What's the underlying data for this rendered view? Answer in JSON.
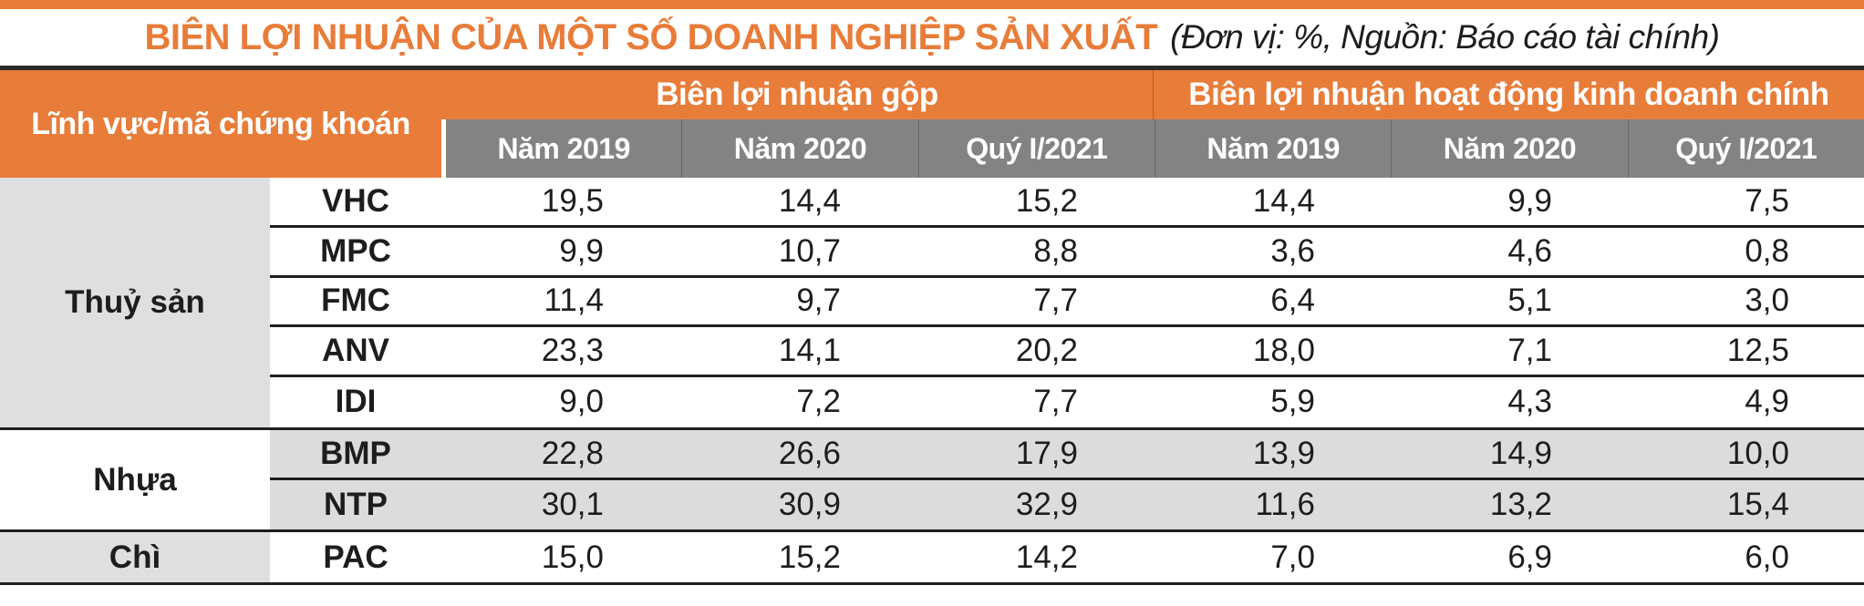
{
  "title": {
    "main": "BIÊN LỢI NHUẬN CỦA MỘT SỐ DOANH NGHIỆP SẢN XUẤT",
    "note": "(Đơn vị: %, Nguồn: Báo cáo tài chính)"
  },
  "table": {
    "corner_header": "Lĩnh vực/mã chứng khoán",
    "groups": [
      {
        "label": "Biên lợi nhuận gộp",
        "columns": [
          "Năm 2019",
          "Năm 2020",
          "Quý I/2021"
        ]
      },
      {
        "label": "Biên lợi nhuận hoạt động kinh doanh chính",
        "columns": [
          "Năm 2019",
          "Năm 2020",
          "Quý I/2021"
        ]
      }
    ],
    "sectors": [
      {
        "name": "Thuỷ sản",
        "shaded_sector": true,
        "shaded_rows": false,
        "rows": [
          {
            "ticker": "VHC",
            "values": [
              "19,5",
              "14,4",
              "15,2",
              "14,4",
              "9,9",
              "7,5"
            ]
          },
          {
            "ticker": "MPC",
            "values": [
              "9,9",
              "10,7",
              "8,8",
              "3,6",
              "4,6",
              "0,8"
            ]
          },
          {
            "ticker": "FMC",
            "values": [
              "11,4",
              "9,7",
              "7,7",
              "6,4",
              "5,1",
              "3,0"
            ]
          },
          {
            "ticker": "ANV",
            "values": [
              "23,3",
              "14,1",
              "20,2",
              "18,0",
              "7,1",
              "12,5"
            ]
          },
          {
            "ticker": "IDI",
            "values": [
              "9,0",
              "7,2",
              "7,7",
              "5,9",
              "4,3",
              "4,9"
            ]
          }
        ]
      },
      {
        "name": "Nhựa",
        "shaded_sector": false,
        "shaded_rows": true,
        "rows": [
          {
            "ticker": "BMP",
            "values": [
              "22,8",
              "26,6",
              "17,9",
              "13,9",
              "14,9",
              "10,0"
            ]
          },
          {
            "ticker": "NTP",
            "values": [
              "30,1",
              "30,9",
              "32,9",
              "11,6",
              "13,2",
              "15,4"
            ]
          }
        ]
      },
      {
        "name": "Chì",
        "shaded_sector": true,
        "shaded_rows": false,
        "rows": [
          {
            "ticker": "PAC",
            "values": [
              "15,0",
              "15,2",
              "14,2",
              "7,0",
              "6,9",
              "6,0"
            ]
          }
        ]
      }
    ]
  },
  "colors": {
    "accent_orange": "#E87C39",
    "header_gray": "#838383",
    "shade_gray": "#DEDEDE",
    "line_dark": "#1e1e1e",
    "text_black": "#1d1d1d",
    "text_white": "#ffffff"
  },
  "chart_data": {
    "type": "table",
    "title": "BIÊN LỢI NHUẬN CỦA MỘT SỐ DOANH NGHIỆP SẢN XUẤT",
    "subtitle": "(Đơn vị: %, Nguồn: Báo cáo tài chính)",
    "unit": "%",
    "column_groups": [
      {
        "label": "Biên lợi nhuận gộp",
        "columns": [
          "Năm 2019",
          "Năm 2020",
          "Quý I/2021"
        ]
      },
      {
        "label": "Biên lợi nhuận hoạt động kinh doanh chính",
        "columns": [
          "Năm 2019",
          "Năm 2020",
          "Quý I/2021"
        ]
      }
    ],
    "row_header": "Lĩnh vực/mã chứng khoán",
    "rows": [
      {
        "sector": "Thuỷ sản",
        "ticker": "VHC",
        "gross_margin": [
          19.5,
          14.4,
          15.2
        ],
        "operating_margin": [
          14.4,
          9.9,
          7.5
        ]
      },
      {
        "sector": "Thuỷ sản",
        "ticker": "MPC",
        "gross_margin": [
          9.9,
          10.7,
          8.8
        ],
        "operating_margin": [
          3.6,
          4.6,
          0.8
        ]
      },
      {
        "sector": "Thuỷ sản",
        "ticker": "FMC",
        "gross_margin": [
          11.4,
          9.7,
          7.7
        ],
        "operating_margin": [
          6.4,
          5.1,
          3.0
        ]
      },
      {
        "sector": "Thuỷ sản",
        "ticker": "ANV",
        "gross_margin": [
          23.3,
          14.1,
          20.2
        ],
        "operating_margin": [
          18.0,
          7.1,
          12.5
        ]
      },
      {
        "sector": "Thuỷ sản",
        "ticker": "IDI",
        "gross_margin": [
          9.0,
          7.2,
          7.7
        ],
        "operating_margin": [
          5.9,
          4.3,
          4.9
        ]
      },
      {
        "sector": "Nhựa",
        "ticker": "BMP",
        "gross_margin": [
          22.8,
          26.6,
          17.9
        ],
        "operating_margin": [
          13.9,
          14.9,
          10.0
        ]
      },
      {
        "sector": "Nhựa",
        "ticker": "NTP",
        "gross_margin": [
          30.1,
          30.9,
          32.9
        ],
        "operating_margin": [
          11.6,
          13.2,
          15.4
        ]
      },
      {
        "sector": "Chì",
        "ticker": "PAC",
        "gross_margin": [
          15.0,
          15.2,
          14.2
        ],
        "operating_margin": [
          7.0,
          6.9,
          6.0
        ]
      }
    ]
  }
}
